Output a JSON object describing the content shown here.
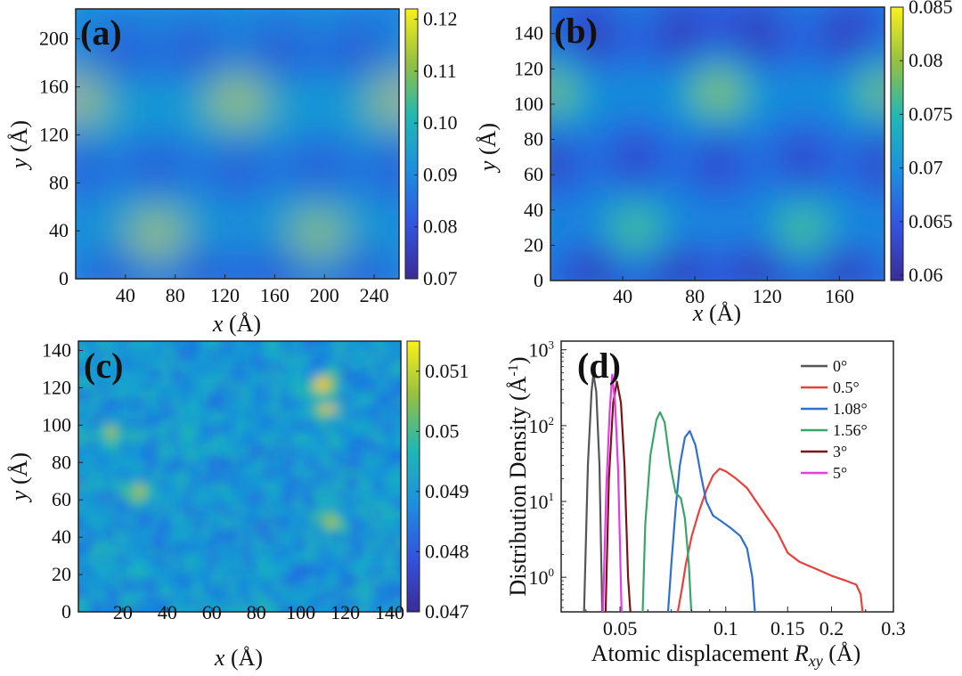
{
  "chart_data": [
    {
      "type": "heatmap",
      "panel_label": "(a)",
      "xlabel_var": "x",
      "ylabel_var": "y",
      "unit": "(Å)",
      "xlim": [
        0,
        260
      ],
      "ylim": [
        0,
        225
      ],
      "xticks": [
        "40",
        "80",
        "120",
        "160",
        "200",
        "240"
      ],
      "yticks": [
        "0",
        "40",
        "80",
        "120",
        "160",
        "200"
      ],
      "colorbar": {
        "min": 0.07,
        "max": 0.122,
        "ticks": [
          "0.07",
          "0.08",
          "0.09",
          "0.10",
          "0.11",
          "0.12"
        ]
      },
      "peaks": [
        {
          "x": 0,
          "y": 150,
          "value": 0.12
        },
        {
          "x": 130,
          "y": 150,
          "value": 0.12
        },
        {
          "x": 260,
          "y": 150,
          "value": 0.12
        },
        {
          "x": 65,
          "y": 35,
          "value": 0.122
        },
        {
          "x": 195,
          "y": 35,
          "value": 0.12
        }
      ]
    },
    {
      "type": "heatmap",
      "panel_label": "(b)",
      "xlabel_var": "x",
      "ylabel_var": "y",
      "unit": "(Å)",
      "xlim": [
        0,
        185
      ],
      "ylim": [
        0,
        155
      ],
      "xticks": [
        "40",
        "80",
        "120",
        "160"
      ],
      "yticks": [
        "0",
        "20",
        "40",
        "60",
        "80",
        "100",
        "120",
        "140"
      ],
      "colorbar": {
        "min": 0.0595,
        "max": 0.085,
        "ticks": [
          "0.06",
          "0.065",
          "0.07",
          "0.075",
          "0.08",
          "0.085"
        ]
      },
      "peaks": [
        {
          "x": 0,
          "y": 107,
          "value": 0.08
        },
        {
          "x": 93,
          "y": 107,
          "value": 0.081
        },
        {
          "x": 185,
          "y": 107,
          "value": 0.08
        },
        {
          "x": 47,
          "y": 28,
          "value": 0.079
        },
        {
          "x": 140,
          "y": 28,
          "value": 0.079
        }
      ]
    },
    {
      "type": "heatmap",
      "panel_label": "(c)",
      "xlabel_var": "x",
      "ylabel_var": "y",
      "unit": "(Å)",
      "xlim": [
        0,
        145
      ],
      "ylim": [
        0,
        145
      ],
      "xticks": [
        "20",
        "40",
        "60",
        "80",
        "100",
        "120",
        "140"
      ],
      "yticks": [
        "0",
        "20",
        "40",
        "60",
        "80",
        "100",
        "120",
        "140"
      ],
      "colorbar": {
        "min": 0.047,
        "max": 0.0515,
        "ticks": [
          "0.047",
          "0.048",
          "0.049",
          "0.05",
          "0.051"
        ]
      },
      "hotspots": [
        {
          "x": 27,
          "y": 65,
          "value": 0.0508
        },
        {
          "x": 110,
          "y": 121,
          "value": 0.0512
        },
        {
          "x": 113,
          "y": 50,
          "value": 0.0505
        },
        {
          "x": 15,
          "y": 95,
          "value": 0.0503
        },
        {
          "x": 112,
          "y": 108,
          "value": 0.0504
        }
      ]
    },
    {
      "type": "line",
      "panel_label": "(d)",
      "xlabel_main": "Atomic displacement",
      "xlabel_var": "R",
      "xlabel_sub": "xy",
      "xlabel_unit": " (Å)",
      "ylabel_main": "Distribution Density (Å",
      "ylabel_sup": "-1",
      "ylabel_close": ")",
      "xscale": "log",
      "yscale": "log",
      "xlim": [
        0.034,
        0.3
      ],
      "ylim": [
        0.35,
        1300
      ],
      "xticks": [
        {
          "v": 0.05,
          "label": "0.05"
        },
        {
          "v": 0.1,
          "label": "0.1"
        },
        {
          "v": 0.15,
          "label": "0.15"
        },
        {
          "v": 0.2,
          "label": "0.2"
        },
        {
          "v": 0.3,
          "label": "0.3"
        }
      ],
      "yticks": [
        {
          "v": 1,
          "base": "10",
          "exp": "0"
        },
        {
          "v": 10,
          "base": "10",
          "exp": "1"
        },
        {
          "v": 100,
          "base": "10",
          "exp": "2"
        },
        {
          "v": 1000,
          "base": "10",
          "exp": "3"
        }
      ],
      "legend_position": "top-right",
      "series": [
        {
          "name": "0°",
          "color": "#555555",
          "points": [
            [
              0.0395,
              0.35
            ],
            [
              0.0405,
              30
            ],
            [
              0.0415,
              280
            ],
            [
              0.042,
              480
            ],
            [
              0.0428,
              280
            ],
            [
              0.0437,
              30
            ],
            [
              0.0445,
              0.35
            ]
          ]
        },
        {
          "name": "0.5°",
          "color": "#e8403a",
          "points": [
            [
              0.073,
              0.35
            ],
            [
              0.075,
              0.7
            ],
            [
              0.077,
              1.5
            ],
            [
              0.08,
              3.5
            ],
            [
              0.084,
              7.5
            ],
            [
              0.088,
              14
            ],
            [
              0.092,
              22
            ],
            [
              0.096,
              27
            ],
            [
              0.1,
              25
            ],
            [
              0.107,
              20
            ],
            [
              0.115,
              15
            ],
            [
              0.122,
              10
            ],
            [
              0.13,
              6.5
            ],
            [
              0.14,
              4
            ],
            [
              0.15,
              2.1
            ],
            [
              0.162,
              1.6
            ],
            [
              0.18,
              1.3
            ],
            [
              0.2,
              1.05
            ],
            [
              0.22,
              0.9
            ],
            [
              0.235,
              0.8
            ],
            [
              0.242,
              0.6
            ],
            [
              0.245,
              0.35
            ]
          ]
        },
        {
          "name": "1.08°",
          "color": "#2f6fcf",
          "points": [
            [
              0.0685,
              0.35
            ],
            [
              0.07,
              1.5
            ],
            [
              0.072,
              8
            ],
            [
              0.074,
              30
            ],
            [
              0.0765,
              70
            ],
            [
              0.079,
              85
            ],
            [
              0.082,
              55
            ],
            [
              0.085,
              22
            ],
            [
              0.088,
              10
            ],
            [
              0.092,
              6.5
            ],
            [
              0.097,
              5.5
            ],
            [
              0.103,
              4.5
            ],
            [
              0.11,
              3.5
            ],
            [
              0.115,
              2.4
            ],
            [
              0.119,
              1
            ],
            [
              0.121,
              0.35
            ]
          ]
        },
        {
          "name": "1.56°",
          "color": "#3aa56a",
          "points": [
            [
              0.058,
              0.35
            ],
            [
              0.059,
              5
            ],
            [
              0.061,
              40
            ],
            [
              0.0635,
              120
            ],
            [
              0.065,
              150
            ],
            [
              0.067,
              110
            ],
            [
              0.0695,
              30
            ],
            [
              0.072,
              13
            ],
            [
              0.0745,
              11
            ],
            [
              0.0765,
              6
            ],
            [
              0.0785,
              1.5
            ],
            [
              0.0798,
              0.35
            ]
          ]
        },
        {
          "name": "3°",
          "color": "#7a1414",
          "points": [
            [
              0.0455,
              0.35
            ],
            [
              0.0465,
              20
            ],
            [
              0.0478,
              200
            ],
            [
              0.049,
              380
            ],
            [
              0.0503,
              200
            ],
            [
              0.0515,
              30
            ],
            [
              0.0527,
              1
            ],
            [
              0.0535,
              0.35
            ]
          ]
        },
        {
          "name": "5°",
          "color": "#e43ce4",
          "points": [
            [
              0.0447,
              0.35
            ],
            [
              0.0457,
              15
            ],
            [
              0.0467,
              150
            ],
            [
              0.0475,
              470
            ],
            [
              0.0484,
              200
            ],
            [
              0.0494,
              25
            ],
            [
              0.0505,
              0.35
            ]
          ]
        }
      ]
    }
  ]
}
